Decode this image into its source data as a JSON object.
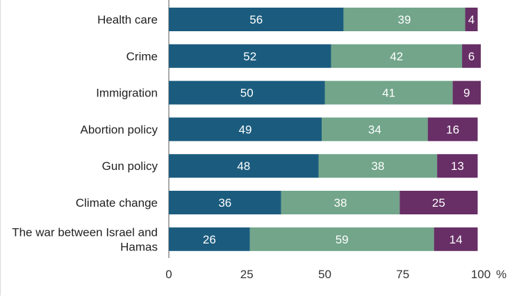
{
  "chart_data": {
    "type": "bar",
    "orientation": "horizontal",
    "stacked": true,
    "title": "",
    "xlabel": "",
    "ylabel": "",
    "xlim": [
      0,
      100
    ],
    "grid": false,
    "legend": "none",
    "x_ticks": [
      "0",
      "25",
      "50",
      "75",
      "100"
    ],
    "x_unit": "%",
    "categories": [
      [
        "Health care"
      ],
      [
        "Crime"
      ],
      [
        "Immigration"
      ],
      [
        "Abortion policy"
      ],
      [
        "Gun policy"
      ],
      [
        "Climate change"
      ],
      [
        "The war between Israel and",
        "Hamas"
      ]
    ],
    "series": [
      {
        "color": "#1b5c7e",
        "values": [
          56,
          52,
          50,
          49,
          48,
          36,
          26
        ]
      },
      {
        "color": "#72a58a",
        "values": [
          39,
          42,
          41,
          34,
          38,
          38,
          59
        ]
      },
      {
        "color": "#672f66",
        "values": [
          4,
          6,
          9,
          16,
          13,
          25,
          14
        ]
      }
    ]
  }
}
